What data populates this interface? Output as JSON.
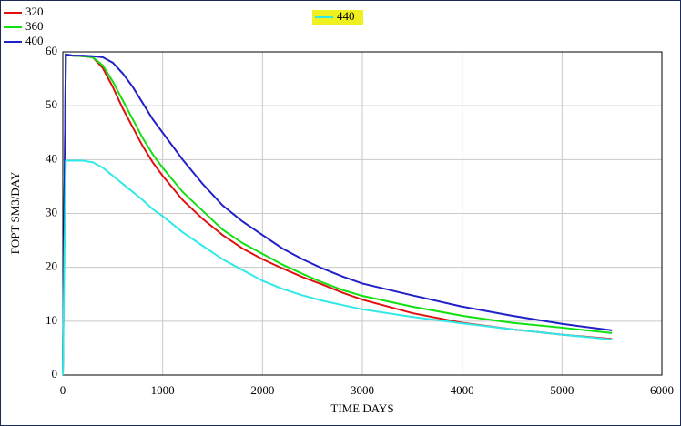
{
  "chart_data": {
    "type": "line",
    "x_label": "TIME DAYS",
    "y_label": "FOPT SM3/DAY",
    "x": [
      0,
      30,
      100,
      200,
      300,
      400,
      500,
      600,
      700,
      800,
      900,
      1000,
      1200,
      1400,
      1600,
      1800,
      2000,
      2200,
      2400,
      2600,
      2800,
      3000,
      3500,
      4000,
      4500,
      5000,
      5500
    ],
    "series": [
      {
        "name": "320",
        "color": "#e01010",
        "values": [
          0,
          59.5,
          59.3,
          59.2,
          59,
          57,
          53.5,
          49.5,
          46,
          42.5,
          39.5,
          37,
          32.5,
          29,
          26,
          23.5,
          21.5,
          19.8,
          18.2,
          16.8,
          15.3,
          14,
          11.5,
          9.7,
          8.5,
          7.5,
          6.7
        ]
      },
      {
        "name": "360",
        "color": "#10e010",
        "values": [
          0,
          59.5,
          59.3,
          59.2,
          59,
          57.5,
          54.5,
          51,
          47.5,
          44,
          41,
          38.5,
          34,
          30.5,
          27,
          24.5,
          22.5,
          20.5,
          18.8,
          17.2,
          15.8,
          14.7,
          12.7,
          11,
          9.7,
          8.8,
          7.8
        ]
      },
      {
        "name": "400",
        "color": "#2020c8",
        "values": [
          0,
          59.5,
          59.3,
          59.3,
          59.2,
          59,
          58,
          56,
          53.5,
          50.5,
          47.5,
          45,
          40,
          35.5,
          31.5,
          28.5,
          26,
          23.5,
          21.5,
          19.8,
          18.3,
          17,
          14.8,
          12.7,
          11,
          9.5,
          8.3
        ]
      },
      {
        "name": "440",
        "color": "#30e8e8",
        "values": [
          0,
          39.8,
          39.8,
          39.8,
          39.5,
          38.5,
          37,
          35.5,
          34,
          32.5,
          30.8,
          29.5,
          26.5,
          24,
          21.5,
          19.5,
          17.5,
          16,
          14.8,
          13.8,
          13,
          12.2,
          10.8,
          9.6,
          8.5,
          7.5,
          6.6
        ]
      }
    ],
    "xlim": [
      0,
      6000
    ],
    "xticks": [
      0,
      1000,
      2000,
      3000,
      4000,
      5000,
      6000
    ],
    "ylim": [
      0,
      60
    ],
    "yticks": [
      0,
      10,
      20,
      30,
      40,
      50,
      60
    ],
    "grid": true
  }
}
